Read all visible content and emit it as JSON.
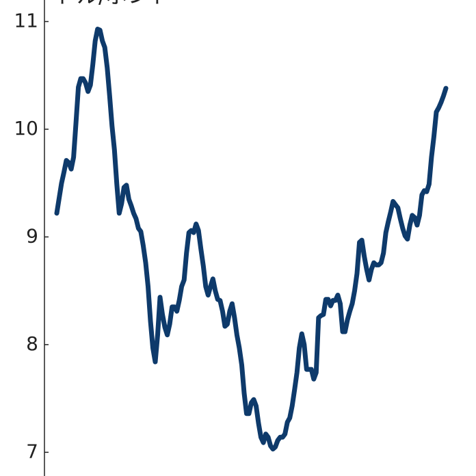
{
  "chart_data": {
    "type": "line",
    "ylabel": "ドル/ポンド",
    "color": "#0e3a6b",
    "ylim": [
      6.78,
      11.2
    ],
    "yticks": [
      7,
      8,
      9,
      10,
      11
    ],
    "values": [
      9.22,
      9.36,
      9.5,
      9.6,
      9.71,
      9.69,
      9.63,
      9.74,
      10.06,
      10.39,
      10.47,
      10.47,
      10.43,
      10.35,
      10.41,
      10.6,
      10.82,
      10.93,
      10.92,
      10.82,
      10.76,
      10.57,
      10.31,
      10.03,
      9.81,
      9.49,
      9.22,
      9.31,
      9.46,
      9.48,
      9.35,
      9.29,
      9.22,
      9.17,
      9.08,
      9.05,
      8.92,
      8.76,
      8.54,
      8.22,
      7.97,
      7.84,
      8.09,
      8.44,
      8.28,
      8.16,
      8.09,
      8.19,
      8.35,
      8.35,
      8.31,
      8.41,
      8.54,
      8.6,
      8.85,
      9.04,
      9.06,
      9.04,
      9.12,
      9.06,
      8.89,
      8.73,
      8.54,
      8.46,
      8.54,
      8.61,
      8.5,
      8.42,
      8.41,
      8.31,
      8.17,
      8.19,
      8.31,
      8.38,
      8.25,
      8.09,
      7.97,
      7.81,
      7.55,
      7.36,
      7.36,
      7.46,
      7.49,
      7.43,
      7.27,
      7.14,
      7.09,
      7.17,
      7.14,
      7.06,
      7.03,
      7.05,
      7.11,
      7.14,
      7.14,
      7.17,
      7.28,
      7.32,
      7.43,
      7.58,
      7.74,
      7.97,
      8.1,
      8.0,
      7.77,
      7.77,
      7.77,
      7.68,
      7.74,
      8.25,
      8.27,
      8.28,
      8.42,
      8.42,
      8.36,
      8.41,
      8.41,
      8.46,
      8.38,
      8.12,
      8.12,
      8.23,
      8.31,
      8.38,
      8.5,
      8.66,
      8.95,
      8.97,
      8.82,
      8.7,
      8.6,
      8.7,
      8.76,
      8.74,
      8.74,
      8.76,
      8.85,
      9.04,
      9.14,
      9.23,
      9.33,
      9.3,
      9.27,
      9.17,
      9.08,
      9.01,
      8.98,
      9.11,
      9.2,
      9.18,
      9.11,
      9.2,
      9.39,
      9.43,
      9.42,
      9.49,
      9.74,
      9.93,
      10.16,
      10.2,
      10.25,
      10.31,
      10.38
    ]
  }
}
